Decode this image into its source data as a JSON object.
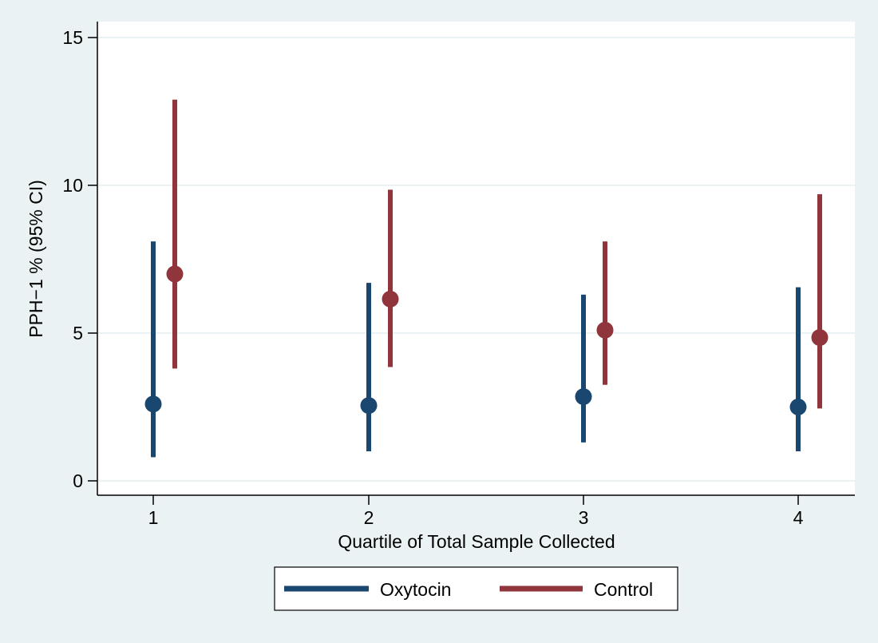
{
  "chart_data": {
    "type": "scatter",
    "subtype": "point-with-error-bars",
    "ylabel": "PPH−1 % (95% CI)",
    "xlabel": "Quartile of Total Sample Collected",
    "categories": [
      "1",
      "2",
      "3",
      "4"
    ],
    "yticks": [
      "0",
      "5",
      "10",
      "15"
    ],
    "ylim": [
      0,
      15
    ],
    "grid": true,
    "legend_position": "bottom",
    "series": [
      {
        "name": "Oxytocin",
        "color": "#1a476f",
        "points": [
          {
            "x": "1",
            "y": 2.6,
            "lower": 0.8,
            "upper": 8.1
          },
          {
            "x": "2",
            "y": 2.55,
            "lower": 1.0,
            "upper": 6.7
          },
          {
            "x": "3",
            "y": 2.85,
            "lower": 1.3,
            "upper": 6.3
          },
          {
            "x": "4",
            "y": 2.5,
            "lower": 1.0,
            "upper": 6.55
          }
        ]
      },
      {
        "name": "Control",
        "color": "#90353b",
        "points": [
          {
            "x": "1",
            "y": 7.0,
            "lower": 3.8,
            "upper": 12.9
          },
          {
            "x": "2",
            "y": 6.15,
            "lower": 3.85,
            "upper": 9.85
          },
          {
            "x": "3",
            "y": 5.1,
            "lower": 3.25,
            "upper": 8.1
          },
          {
            "x": "4",
            "y": 4.85,
            "lower": 2.45,
            "upper": 9.7
          }
        ]
      }
    ]
  }
}
